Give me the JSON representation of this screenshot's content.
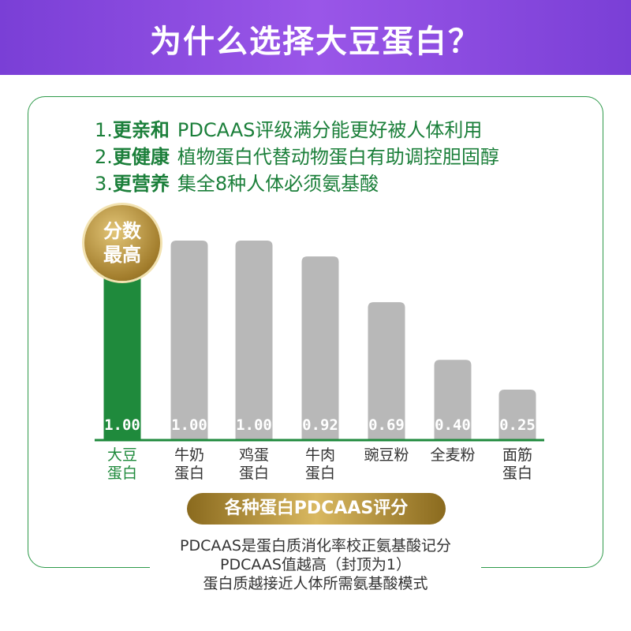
{
  "header": {
    "title": "为什么选择大豆蛋白？"
  },
  "points": [
    {
      "number": "1.",
      "label": "更亲和",
      "text": "PDCAAS评级满分能更好被人体利用"
    },
    {
      "number": "2.",
      "label": "更健康",
      "text": "植物蛋白代替动物蛋白有助调控胆固醇"
    },
    {
      "number": "3.",
      "label": "更营养",
      "text": "集全8种人体必须氨基酸"
    }
  ],
  "badge": "分数\n最高",
  "chart_data": {
    "type": "bar",
    "title": "各种蛋白PDCAAS评分",
    "categories": [
      "大豆\n蛋白",
      "牛奶\n蛋白",
      "鸡蛋\n蛋白",
      "牛肉\n蛋白",
      "豌豆粉",
      "全麦粉",
      "面筋\n蛋白"
    ],
    "values": [
      1.0,
      1.0,
      1.0,
      0.92,
      0.69,
      0.4,
      0.25
    ],
    "value_labels": [
      "1.00",
      "1.00",
      "1.00",
      "0.92",
      "0.69",
      "0.40",
      "0.25"
    ],
    "colors": [
      "#1f8a3c",
      "#b8b8b8",
      "#b8b8b8",
      "#b8b8b8",
      "#b8b8b8",
      "#b8b8b8",
      "#b8b8b8"
    ],
    "label_colors": [
      "#1f8a3c",
      "#333333",
      "#333333",
      "#333333",
      "#333333",
      "#333333",
      "#333333"
    ],
    "ylim": [
      0,
      1
    ]
  },
  "notes": [
    "PDCAAS是蛋白质消化率校正氨基酸记分",
    "PDCAAS值越高（封顶为1）",
    "蛋白质越接近人体所需氨基酸模式"
  ]
}
